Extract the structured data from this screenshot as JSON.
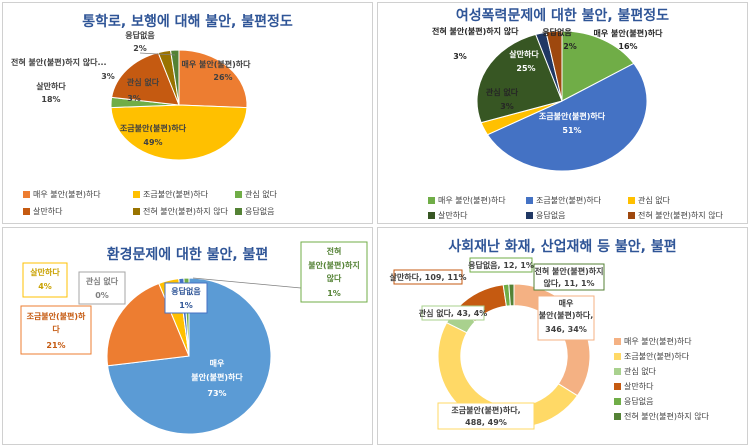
{
  "chart_data": [
    {
      "type": "pie",
      "title": "통학로, 보행에 대해 불안, 불편정도",
      "categories": [
        "매우 불안(불편)하다",
        "조금불안(불편)하다",
        "관심 없다",
        "살만하다",
        "전혀 불안(불편)하지 않다",
        "응답없음"
      ],
      "values": [
        26,
        49,
        3,
        18,
        3,
        2
      ],
      "colors": [
        "#ED7D31",
        "#FFC000",
        "#70AD47",
        "#C55A11",
        "#997300",
        "#548235"
      ],
      "labels": [
        {
          "name": "매우 불안(불편)하다",
          "value": "26%"
        },
        {
          "name": "조금불안(불편)하다",
          "value": "49%"
        },
        {
          "name": "관심 없다",
          "value": "3%"
        },
        {
          "name": "살만하다",
          "value": "18%"
        },
        {
          "name": "전혀 불안(불편)하지 않다...",
          "value": "3%"
        },
        {
          "name": "응답없음",
          "value": "2%"
        }
      ],
      "legend": [
        "매우 불안(불편)하다",
        "조금불안(불편)하다",
        "관심 없다",
        "살만하다",
        "전혀 불안(불편)하지 않다",
        "응답없음"
      ],
      "legend_position": "bottom"
    },
    {
      "type": "pie",
      "title": "여성폭력문제에 대한 불안, 불편정도",
      "categories": [
        "매우 불안(불편)하다",
        "조금불안(불편)하다",
        "관심 없다",
        "살만하다",
        "응답없음",
        "전혀 불안(불편)하지 않다"
      ],
      "values": [
        16,
        51,
        3,
        25,
        2,
        3
      ],
      "colors": [
        "#70AD47",
        "#4472C4",
        "#FFC000",
        "#375623",
        "#203864",
        "#9E480E"
      ],
      "labels": [
        {
          "name": "매우 불안(불편)하다",
          "value": "16%"
        },
        {
          "name": "조금불안(불편)하다",
          "value": "51%"
        },
        {
          "name": "관심 없다",
          "value": "3%"
        },
        {
          "name": "살만하다",
          "value": "25%"
        },
        {
          "name": "응답없음",
          "value": "2%"
        },
        {
          "name": "전혀 불안(불편)하지 않다",
          "value": "3%"
        }
      ],
      "legend": [
        "매우 불안(불편)하다",
        "조금불안(불편)하다",
        "관심 없다",
        "살만하다",
        "응답없음",
        "전혀 불안(불편)하지 않다"
      ],
      "legend_position": "bottom"
    },
    {
      "type": "pie",
      "title": "환경문제에 대한 불안, 불편",
      "categories": [
        "매우 불안(불편)하다",
        "조금불안(불편)하다",
        "살만하다",
        "관심 없다",
        "응답없음",
        "전혀 불안(불편)하지 않다"
      ],
      "values": [
        73,
        21,
        4,
        0,
        1,
        1
      ],
      "colors": [
        "#5B9BD5",
        "#ED7D31",
        "#FFC000",
        "#A5A5A5",
        "#4472C4",
        "#70AD47"
      ],
      "labels": [
        {
          "name": "매우 불안(불편)하다",
          "value": "73%"
        },
        {
          "name": "조금불안(불편)하다",
          "value": "21%"
        },
        {
          "name": "살만하다",
          "value": "4%"
        },
        {
          "name": "관심 없다",
          "value": "0%"
        },
        {
          "name": "응답없음",
          "value": "1%"
        },
        {
          "name": "전혀 불안(불편)하지 않다",
          "value": "1%"
        }
      ]
    },
    {
      "type": "donut",
      "title": "사회재난 화재, 산업재해 등 불안, 불편",
      "categories": [
        "매우 불안(불편)하다",
        "조금불안(불편)하다",
        "관심 없다",
        "살만하다",
        "응답없음",
        "전혀 불안(불편)하지 않다"
      ],
      "values": [
        346,
        488,
        43,
        109,
        12,
        11
      ],
      "percents": [
        34,
        49,
        4,
        11,
        1,
        1
      ],
      "colors": [
        "#F4B183",
        "#FFD966",
        "#A9D18E",
        "#C55A11",
        "#70AD47",
        "#548235"
      ],
      "labels": [
        {
          "name": "매우 불안(불편)하다",
          "value": "346, 34%"
        },
        {
          "name": "조금불안(불편)하다",
          "value": "488, 49%"
        },
        {
          "name": "관심 없다",
          "value": "43, 4%"
        },
        {
          "name": "살만하다",
          "value": "109, 11%"
        },
        {
          "name": "응답없음",
          "value": "12, 1%"
        },
        {
          "name": "전혀 불안(불편)하지 않다",
          "value": "11, 1%"
        }
      ],
      "legend": [
        "매우 불안(불편)하다",
        "조금불안(불편)하다",
        "관심 없다",
        "살만하다",
        "응답없음",
        "전혀 불안(불편)하지 않다"
      ],
      "legend_position": "right"
    }
  ]
}
